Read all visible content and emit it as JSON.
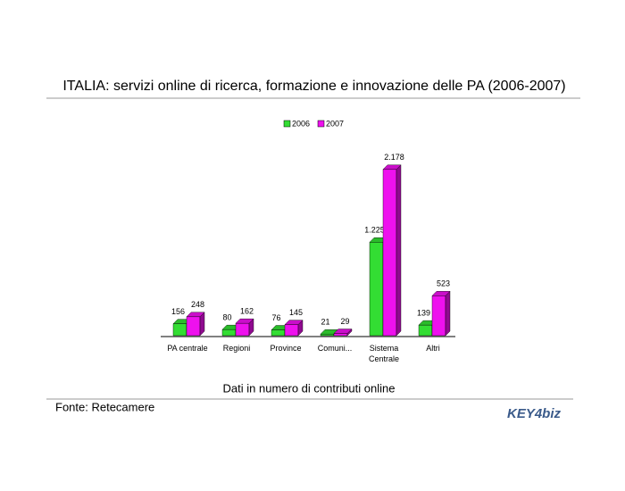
{
  "chart_data": {
    "type": "bar3d",
    "title": "ITALIA: servizi online di ricerca, formazione e innovazione delle PA (2006-2007)",
    "subtitle": "Dati in numero di contributi online",
    "source": "Fonte: Retecamere",
    "logo": "KEY4biz",
    "categories": [
      "PA centrale",
      "Regioni",
      "Province",
      "Comuni...",
      "Sistema Centrale",
      "Altri"
    ],
    "series": [
      {
        "name": "2006",
        "color": "#33dd33",
        "values": [
          156,
          80,
          76,
          21,
          1225,
          139
        ],
        "value_labels": [
          "156",
          "80",
          "76",
          "21",
          "1.225",
          "139"
        ]
      },
      {
        "name": "2007",
        "color": "#ee11ee",
        "values": [
          248,
          162,
          145,
          29,
          2178,
          523
        ],
        "value_labels": [
          "248",
          "162",
          "145",
          "29",
          "2.178",
          "523"
        ]
      }
    ],
    "legend": "top"
  }
}
